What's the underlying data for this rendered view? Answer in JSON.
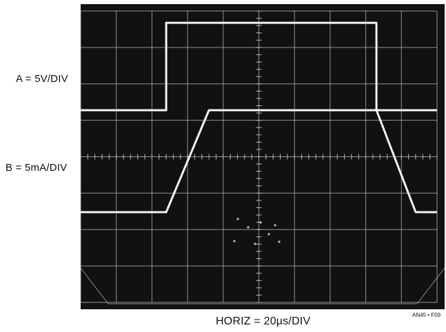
{
  "figure_id": "AN45 • F09",
  "chart_data": {
    "type": "line",
    "title": "",
    "xlabel": "HORIZ = 20µs/DIV",
    "x_unit_per_div": "20µs",
    "grid": true,
    "grid_divisions": {
      "x": 10,
      "y": 8
    },
    "style": {
      "background": "#111111",
      "grid": "#bdbdbd",
      "trace": "#f5f5f5"
    },
    "series": [
      {
        "name": "A = 5V/DIV",
        "scale": "5V/DIV",
        "x_div": [
          0,
          2.4,
          2.4,
          8.3,
          8.3,
          10
        ],
        "y_div": [
          0,
          0,
          2.4,
          2.4,
          0,
          0
        ],
        "note": "pulse from about 2.4 div to 8.3 div, roughly 2.4 divisions high"
      },
      {
        "name": "B = 5mA/DIV",
        "scale": "5mA/DIV",
        "x_div": [
          0,
          2.4,
          3.6,
          8.3,
          9.4,
          10
        ],
        "y_div": [
          0,
          0,
          2.8,
          2.8,
          0,
          0
        ],
        "note": "trapezoid: ramps up 2.4 to 3.6 div, flat top to 8.3 div, ramps down to 9.4 div"
      }
    ]
  }
}
